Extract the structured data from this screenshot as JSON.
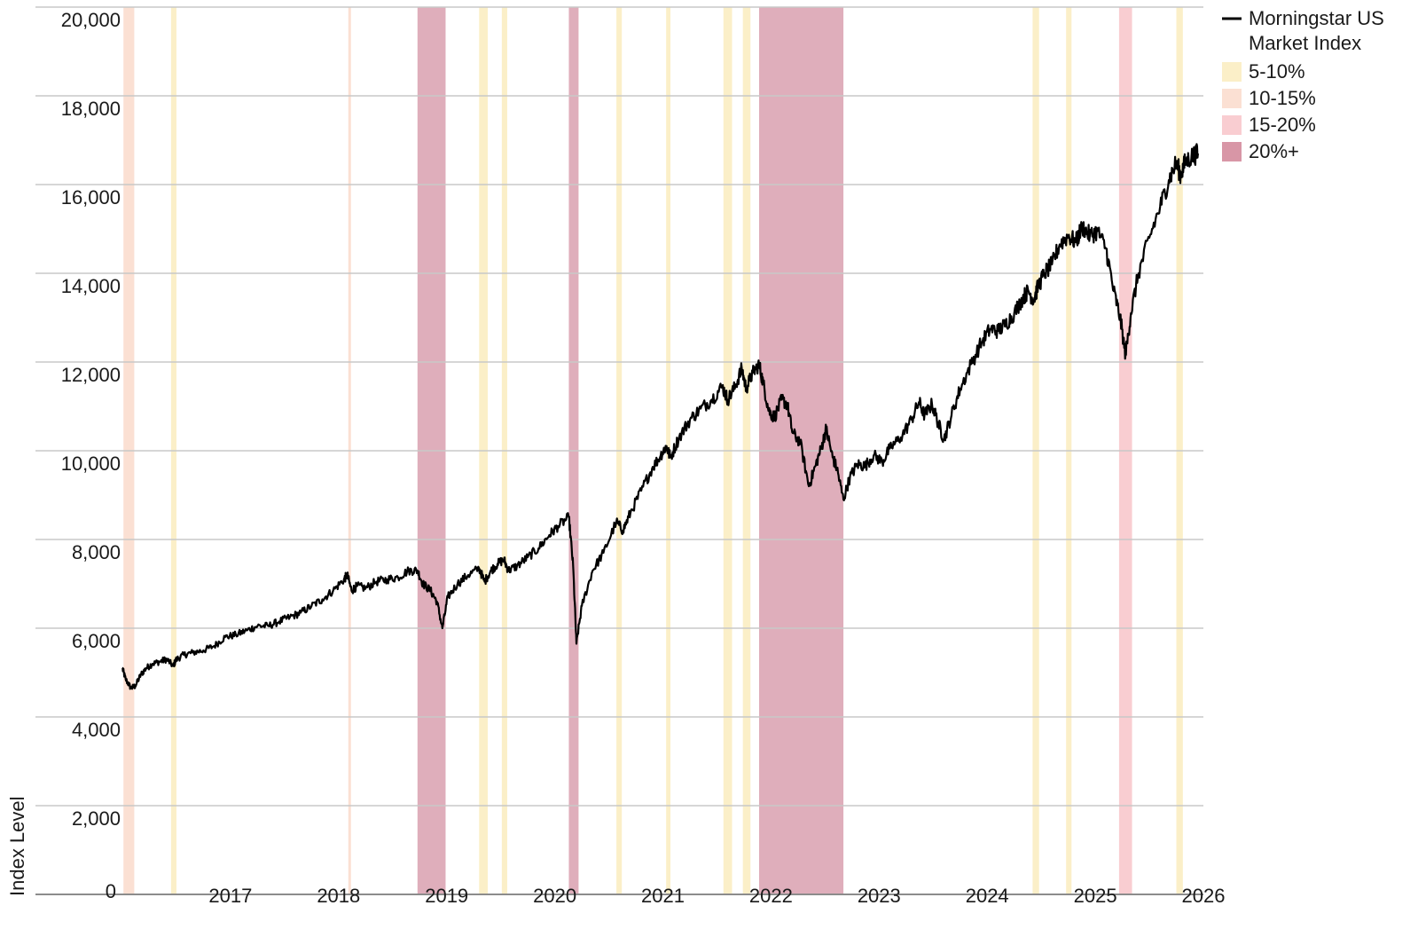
{
  "chart_data": {
    "type": "line",
    "title": "",
    "ylabel": "Index Level",
    "xlabel": "",
    "ylim": [
      0,
      20000
    ],
    "xlim": [
      2015.95,
      2025.95
    ],
    "y_ticks": [
      {
        "value": 0,
        "label": "0"
      },
      {
        "value": 2000,
        "label": "2,000"
      },
      {
        "value": 4000,
        "label": "4,000"
      },
      {
        "value": 6000,
        "label": "6,000"
      },
      {
        "value": 8000,
        "label": "8,000"
      },
      {
        "value": 10000,
        "label": "10,000"
      },
      {
        "value": 12000,
        "label": "12,000"
      },
      {
        "value": 14000,
        "label": "14,000"
      },
      {
        "value": 16000,
        "label": "16,000"
      },
      {
        "value": 18000,
        "label": "18,000"
      },
      {
        "value": 20000,
        "label": "20,000"
      }
    ],
    "x_ticks": [
      {
        "value": 2016.95,
        "label": "2017"
      },
      {
        "value": 2017.95,
        "label": "2018"
      },
      {
        "value": 2018.95,
        "label": "2019"
      },
      {
        "value": 2019.95,
        "label": "2020"
      },
      {
        "value": 2020.95,
        "label": "2021"
      },
      {
        "value": 2021.95,
        "label": "2022"
      },
      {
        "value": 2022.95,
        "label": "2023"
      },
      {
        "value": 2023.95,
        "label": "2024"
      },
      {
        "value": 2024.95,
        "label": "2025"
      },
      {
        "value": 2025.95,
        "label": "2026"
      }
    ],
    "grid": true,
    "legend_position": "top-right",
    "legend": [
      {
        "label": "Morningstar US Market Index",
        "lines": [
          "Morningstar US",
          "Market Index"
        ],
        "kind": "line",
        "color": "#000000"
      },
      {
        "label": "5-10%",
        "kind": "swatch",
        "color": "#fbefc8"
      },
      {
        "label": "10-15%",
        "kind": "swatch",
        "color": "#fbe0d3"
      },
      {
        "label": "15-20%",
        "kind": "swatch",
        "color": "#f9cdd1"
      },
      {
        "label": "20%+",
        "kind": "swatch",
        "color": "#d896a6"
      }
    ],
    "drawdown_colors": {
      "5-10%": "#fbefc8",
      "10-15%": "#fbe0d3",
      "15-20%": "#f9cdd1",
      "20%+": "#dfaebb"
    },
    "drawdown_periods": [
      {
        "start": 2015.96,
        "end": 2016.06,
        "category": "10-15%"
      },
      {
        "start": 2016.4,
        "end": 2016.45,
        "category": "5-10%"
      },
      {
        "start": 2018.04,
        "end": 2018.06,
        "category": "10-15%"
      },
      {
        "start": 2018.68,
        "end": 2018.94,
        "category": "20%+"
      },
      {
        "start": 2019.25,
        "end": 2019.33,
        "category": "5-10%"
      },
      {
        "start": 2019.46,
        "end": 2019.51,
        "category": "5-10%"
      },
      {
        "start": 2020.08,
        "end": 2020.17,
        "category": "20%+"
      },
      {
        "start": 2020.52,
        "end": 2020.57,
        "category": "5-10%"
      },
      {
        "start": 2020.98,
        "end": 2021.02,
        "category": "5-10%"
      },
      {
        "start": 2021.51,
        "end": 2021.59,
        "category": "5-10%"
      },
      {
        "start": 2021.69,
        "end": 2021.76,
        "category": "5-10%"
      },
      {
        "start": 2021.84,
        "end": 2022.62,
        "category": "20%+"
      },
      {
        "start": 2024.37,
        "end": 2024.43,
        "category": "5-10%"
      },
      {
        "start": 2024.68,
        "end": 2024.73,
        "category": "5-10%"
      },
      {
        "start": 2025.17,
        "end": 2025.29,
        "category": "15-20%"
      },
      {
        "start": 2025.7,
        "end": 2025.76,
        "category": "5-10%"
      }
    ],
    "series": [
      {
        "name": "Morningstar US Market Index",
        "color": "#000000",
        "points": [
          [
            2015.95,
            5100
          ],
          [
            2015.98,
            4850
          ],
          [
            2016.03,
            4650
          ],
          [
            2016.07,
            4700
          ],
          [
            2016.12,
            4950
          ],
          [
            2016.17,
            5100
          ],
          [
            2016.23,
            5200
          ],
          [
            2016.3,
            5250
          ],
          [
            2016.36,
            5300
          ],
          [
            2016.42,
            5150
          ],
          [
            2016.45,
            5300
          ],
          [
            2016.52,
            5400
          ],
          [
            2016.6,
            5450
          ],
          [
            2016.7,
            5500
          ],
          [
            2016.8,
            5600
          ],
          [
            2016.9,
            5800
          ],
          [
            2017.0,
            5850
          ],
          [
            2017.1,
            5950
          ],
          [
            2017.2,
            6050
          ],
          [
            2017.3,
            6050
          ],
          [
            2017.4,
            6150
          ],
          [
            2017.5,
            6250
          ],
          [
            2017.6,
            6350
          ],
          [
            2017.7,
            6500
          ],
          [
            2017.8,
            6650
          ],
          [
            2017.9,
            6850
          ],
          [
            2018.0,
            7100
          ],
          [
            2018.03,
            7200
          ],
          [
            2018.07,
            6850
          ],
          [
            2018.12,
            6950
          ],
          [
            2018.2,
            6900
          ],
          [
            2018.3,
            7050
          ],
          [
            2018.4,
            7100
          ],
          [
            2018.5,
            7150
          ],
          [
            2018.6,
            7300
          ],
          [
            2018.68,
            7300
          ],
          [
            2018.73,
            7000
          ],
          [
            2018.8,
            6850
          ],
          [
            2018.86,
            6600
          ],
          [
            2018.91,
            6000
          ],
          [
            2018.96,
            6700
          ],
          [
            2019.05,
            7000
          ],
          [
            2019.15,
            7200
          ],
          [
            2019.25,
            7350
          ],
          [
            2019.3,
            7050
          ],
          [
            2019.36,
            7300
          ],
          [
            2019.42,
            7450
          ],
          [
            2019.48,
            7550
          ],
          [
            2019.52,
            7300
          ],
          [
            2019.6,
            7400
          ],
          [
            2019.7,
            7600
          ],
          [
            2019.8,
            7800
          ],
          [
            2019.9,
            8100
          ],
          [
            2019.98,
            8300
          ],
          [
            2020.08,
            8500
          ],
          [
            2020.12,
            7400
          ],
          [
            2020.15,
            5650
          ],
          [
            2020.2,
            6500
          ],
          [
            2020.3,
            7300
          ],
          [
            2020.4,
            7700
          ],
          [
            2020.52,
            8400
          ],
          [
            2020.58,
            8200
          ],
          [
            2020.65,
            8600
          ],
          [
            2020.75,
            9100
          ],
          [
            2020.85,
            9600
          ],
          [
            2020.93,
            9900
          ],
          [
            2020.98,
            10100
          ],
          [
            2021.02,
            9850
          ],
          [
            2021.1,
            10300
          ],
          [
            2021.2,
            10700
          ],
          [
            2021.3,
            10950
          ],
          [
            2021.4,
            11150
          ],
          [
            2021.5,
            11450
          ],
          [
            2021.55,
            11150
          ],
          [
            2021.62,
            11450
          ],
          [
            2021.68,
            11850
          ],
          [
            2021.72,
            11400
          ],
          [
            2021.78,
            11750
          ],
          [
            2021.84,
            11950
          ],
          [
            2021.88,
            11500
          ],
          [
            2021.93,
            10900
          ],
          [
            2021.98,
            10750
          ],
          [
            2022.05,
            11150
          ],
          [
            2022.1,
            11050
          ],
          [
            2022.15,
            10400
          ],
          [
            2022.22,
            10200
          ],
          [
            2022.3,
            9200
          ],
          [
            2022.36,
            9650
          ],
          [
            2022.42,
            10100
          ],
          [
            2022.46,
            10500
          ],
          [
            2022.52,
            9850
          ],
          [
            2022.56,
            9600
          ],
          [
            2022.62,
            8900
          ],
          [
            2022.68,
            9400
          ],
          [
            2022.75,
            9700
          ],
          [
            2022.82,
            9650
          ],
          [
            2022.9,
            9900
          ],
          [
            2022.98,
            9750
          ],
          [
            2023.05,
            10050
          ],
          [
            2023.15,
            10300
          ],
          [
            2023.25,
            10700
          ],
          [
            2023.32,
            11100
          ],
          [
            2023.37,
            10800
          ],
          [
            2023.44,
            11050
          ],
          [
            2023.5,
            10600
          ],
          [
            2023.55,
            10250
          ],
          [
            2023.62,
            10800
          ],
          [
            2023.7,
            11400
          ],
          [
            2023.8,
            11950
          ],
          [
            2023.9,
            12450
          ],
          [
            2023.98,
            12750
          ],
          [
            2024.05,
            12700
          ],
          [
            2024.12,
            12850
          ],
          [
            2024.2,
            13100
          ],
          [
            2024.28,
            13450
          ],
          [
            2024.33,
            13600
          ],
          [
            2024.38,
            13400
          ],
          [
            2024.42,
            13700
          ],
          [
            2024.48,
            14000
          ],
          [
            2024.55,
            14200
          ],
          [
            2024.62,
            14650
          ],
          [
            2024.7,
            14850
          ],
          [
            2024.77,
            14700
          ],
          [
            2024.83,
            15050
          ],
          [
            2024.9,
            14850
          ],
          [
            2024.97,
            14950
          ],
          [
            2025.05,
            14550
          ],
          [
            2025.12,
            13600
          ],
          [
            2025.18,
            13000
          ],
          [
            2025.23,
            12150
          ],
          [
            2025.28,
            13100
          ],
          [
            2025.35,
            14000
          ],
          [
            2025.45,
            14800
          ],
          [
            2025.55,
            15500
          ],
          [
            2025.63,
            16100
          ],
          [
            2025.7,
            16500
          ],
          [
            2025.74,
            16200
          ],
          [
            2025.78,
            16500
          ],
          [
            2025.85,
            16650
          ],
          [
            2025.9,
            16700
          ]
        ]
      }
    ]
  }
}
